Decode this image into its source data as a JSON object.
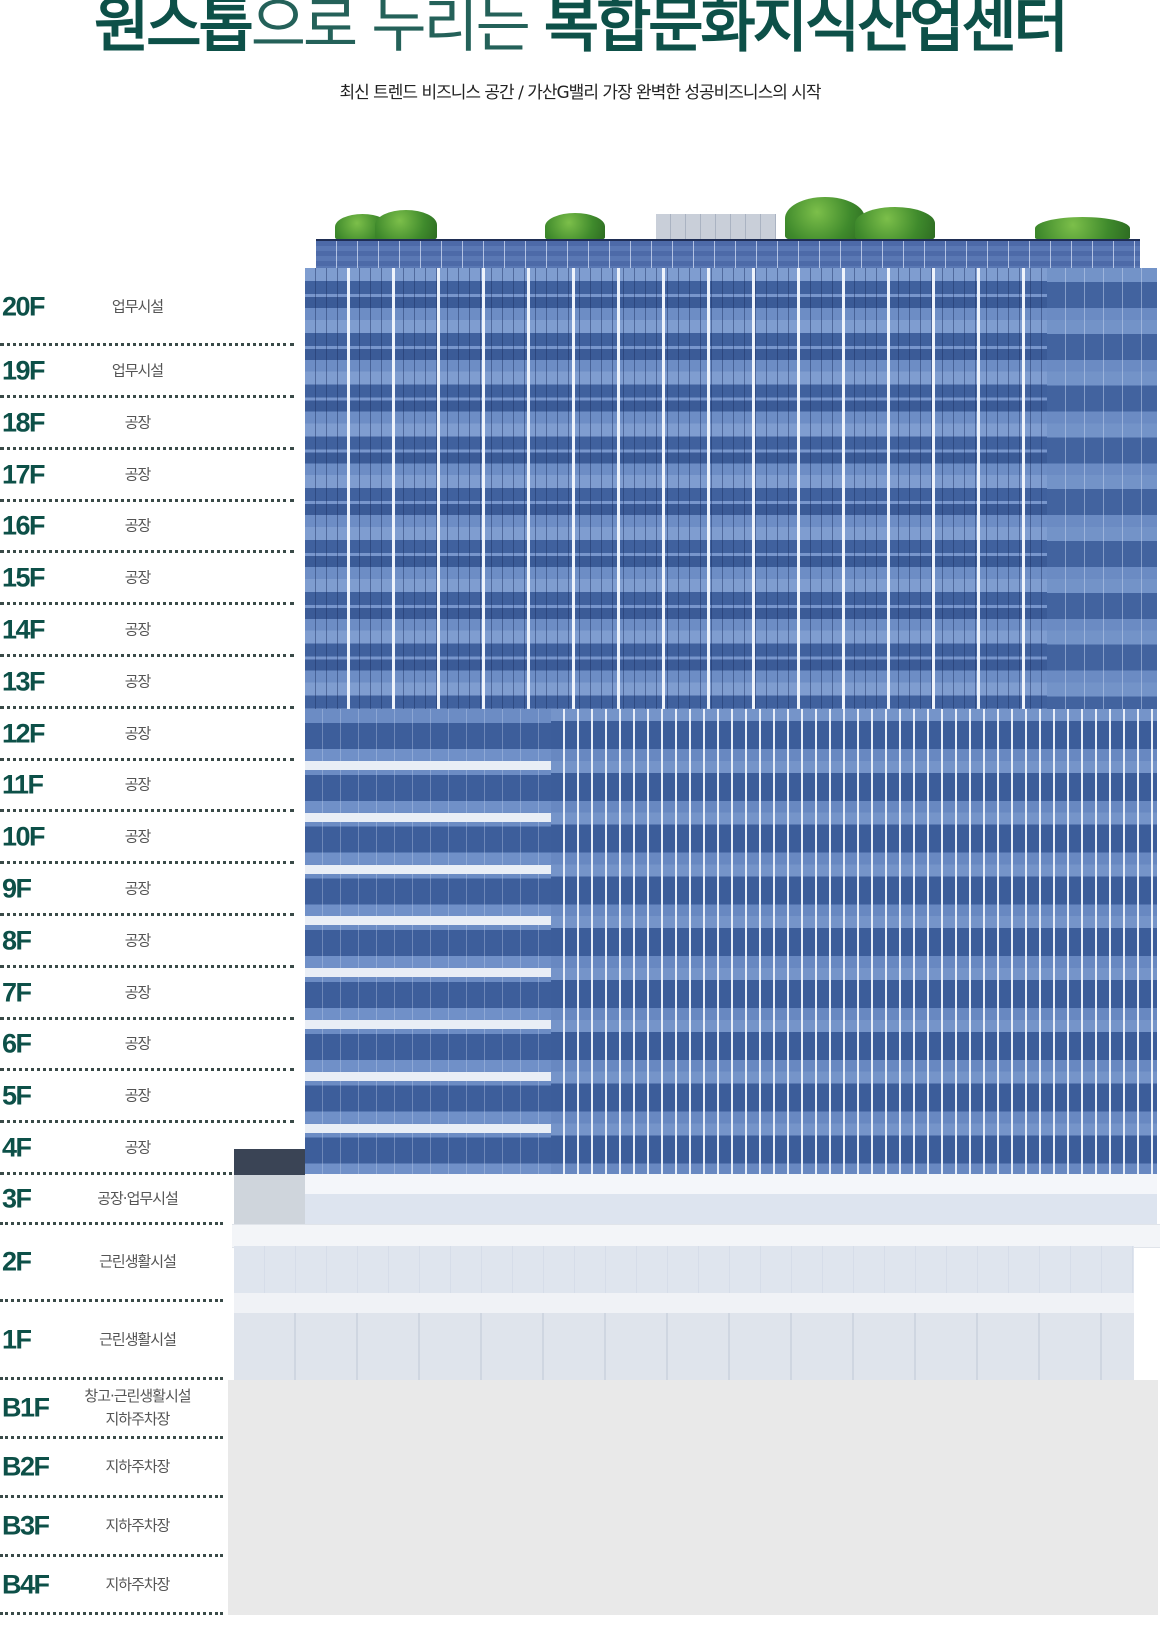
{
  "header": {
    "title_bold_1": "원스톱",
    "title_light": "으로 누리는 ",
    "title_bold_2": "복합문화지식산업센터",
    "subtitle": "최신 트렌드 비즈니스 공간 / 가산G밸리 가장 완벽한 성공비즈니스의 시작"
  },
  "floors": [
    {
      "floor": "20F",
      "use": "업무시설"
    },
    {
      "floor": "19F",
      "use": "업무시설"
    },
    {
      "floor": "18F",
      "use": "공장"
    },
    {
      "floor": "17F",
      "use": "공장"
    },
    {
      "floor": "16F",
      "use": "공장"
    },
    {
      "floor": "15F",
      "use": "공장"
    },
    {
      "floor": "14F",
      "use": "공장"
    },
    {
      "floor": "13F",
      "use": "공장"
    },
    {
      "floor": "12F",
      "use": "공장"
    },
    {
      "floor": "11F",
      "use": "공장"
    },
    {
      "floor": "10F",
      "use": "공장"
    },
    {
      "floor": "9F",
      "use": "공장"
    },
    {
      "floor": "8F",
      "use": "공장"
    },
    {
      "floor": "7F",
      "use": "공장"
    },
    {
      "floor": "6F",
      "use": "공장"
    },
    {
      "floor": "5F",
      "use": "공장"
    },
    {
      "floor": "4F",
      "use": "공장"
    },
    {
      "floor": "3F",
      "use": "공장·업무시설"
    },
    {
      "floor": "2F",
      "use": "근린생활시설"
    },
    {
      "floor": "1F",
      "use": "근린생활시설"
    },
    {
      "floor": "B1F",
      "use": "창고·근린생활시설",
      "use2": "지하주차장"
    },
    {
      "floor": "B2F",
      "use": "지하주차장"
    },
    {
      "floor": "B3F",
      "use": "지하주차장"
    },
    {
      "floor": "B4F",
      "use": "지하주차장"
    }
  ]
}
